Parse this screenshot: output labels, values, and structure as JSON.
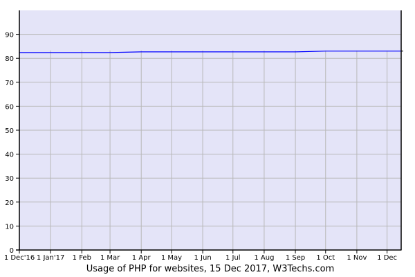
{
  "chart_data": {
    "type": "line",
    "title": "Usage of PHP for websites, 15 Dec 2017, W3Techs.com",
    "xlabel": "",
    "ylabel": "",
    "ylim": [
      0,
      100
    ],
    "xlim": [
      "2016-12-01",
      "2017-12-15"
    ],
    "grid": true,
    "y_ticks": [
      "0",
      "10",
      "20",
      "30",
      "40",
      "50",
      "60",
      "70",
      "80",
      "90"
    ],
    "x_ticks": [
      {
        "date": "2016-12-01",
        "label": "1 Dec'16"
      },
      {
        "date": "2017-01-01",
        "label": "1 Jan'17"
      },
      {
        "date": "2017-02-01",
        "label": "1 Feb"
      },
      {
        "date": "2017-03-01",
        "label": "1 Mar"
      },
      {
        "date": "2017-04-01",
        "label": "1 Apr"
      },
      {
        "date": "2017-05-01",
        "label": "1 May"
      },
      {
        "date": "2017-06-01",
        "label": "1 Jun"
      },
      {
        "date": "2017-07-01",
        "label": "1 Jul"
      },
      {
        "date": "2017-08-01",
        "label": "1 Aug"
      },
      {
        "date": "2017-09-01",
        "label": "1 Sep"
      },
      {
        "date": "2017-10-01",
        "label": "1 Oct"
      },
      {
        "date": "2017-11-01",
        "label": "1 Nov"
      },
      {
        "date": "2017-12-01",
        "label": "1 Dec"
      }
    ],
    "series": [
      {
        "color": "#0000ff",
        "points": [
          [
            "2016-12-01",
            82.4
          ],
          [
            "2017-01-01",
            82.4
          ],
          [
            "2017-02-01",
            82.4
          ],
          [
            "2017-03-01",
            82.4
          ],
          [
            "2017-04-01",
            82.7
          ],
          [
            "2017-05-01",
            82.7
          ],
          [
            "2017-06-01",
            82.7
          ],
          [
            "2017-07-01",
            82.7
          ],
          [
            "2017-08-01",
            82.7
          ],
          [
            "2017-09-01",
            82.7
          ],
          [
            "2017-10-01",
            83.0
          ],
          [
            "2017-11-01",
            83.0
          ],
          [
            "2017-12-01",
            83.0
          ],
          [
            "2017-12-15",
            83.0
          ]
        ]
      }
    ],
    "colors": {
      "plot_background": "#e4e4f8",
      "grid": "#b8b8b8",
      "line": "#0000ff"
    }
  }
}
